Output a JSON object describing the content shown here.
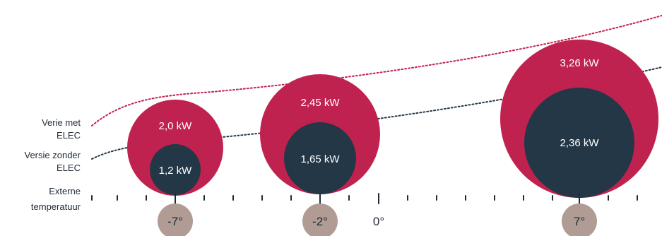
{
  "labels": {
    "with_elec": [
      "Verie met",
      "ELEC"
    ],
    "without_elec": [
      "Versie zonder",
      "ELEC"
    ],
    "external_temp": [
      "Externe",
      "temperatuur"
    ],
    "zero": "0°"
  },
  "colors": {
    "with_elec": "#c0224f",
    "without_elec": "#233746",
    "temp_badge": "#b09c94",
    "axis": "#1f2a36"
  },
  "points": [
    {
      "temperature": "-7°",
      "with_elec": "2,0 kW",
      "without_elec": "1,2 kW",
      "with_kw": 2.0,
      "without_kw": 1.2
    },
    {
      "temperature": "-2°",
      "with_elec": "2,45 kW",
      "without_elec": "1,65 kW",
      "with_kw": 2.45,
      "without_kw": 1.65
    },
    {
      "temperature": "7°",
      "with_elec": "3,26 kW",
      "without_elec": "2,36 kW",
      "with_kw": 3.26,
      "without_kw": 2.36
    }
  ]
}
